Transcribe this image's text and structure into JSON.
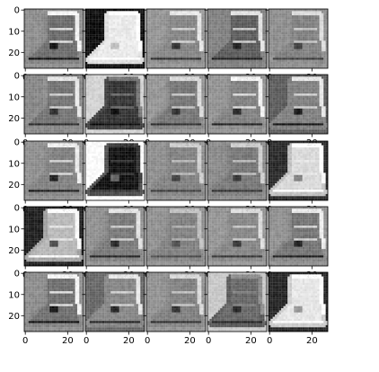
{
  "figure": {
    "rows": 5,
    "cols": 5,
    "background": "#ffffff",
    "colormap": "gray"
  },
  "chart_data": {
    "type": "heatmap",
    "subject": "boot",
    "grid": [
      5,
      5
    ],
    "image_size": [
      28,
      28
    ],
    "xlim": [
      0,
      27
    ],
    "ylim": [
      27,
      0
    ],
    "xticks": [
      0,
      20
    ],
    "yticks": [
      0,
      10,
      20
    ],
    "tick_labels": {
      "x": [
        "0",
        "20"
      ],
      "y": [
        "0",
        "10",
        "20"
      ]
    },
    "panels": [
      {
        "row": 0,
        "col": 0,
        "bg": 0.55,
        "body": 0.42,
        "edge": 0.95,
        "shadow": 0.08,
        "inverted": false
      },
      {
        "row": 0,
        "col": 1,
        "bg": 0.05,
        "body": 0.92,
        "edge": 1.0,
        "shadow": 0.75,
        "inverted": true
      },
      {
        "row": 0,
        "col": 2,
        "bg": 0.58,
        "body": 0.52,
        "edge": 0.9,
        "shadow": 0.2,
        "inverted": false
      },
      {
        "row": 0,
        "col": 3,
        "bg": 0.5,
        "body": 0.36,
        "edge": 0.88,
        "shadow": 0.12,
        "inverted": false
      },
      {
        "row": 0,
        "col": 4,
        "bg": 0.55,
        "body": 0.5,
        "edge": 0.85,
        "shadow": 0.25,
        "inverted": false
      },
      {
        "row": 1,
        "col": 0,
        "bg": 0.52,
        "body": 0.45,
        "edge": 0.9,
        "shadow": 0.18,
        "inverted": false
      },
      {
        "row": 1,
        "col": 1,
        "bg": 0.82,
        "body": 0.2,
        "edge": 0.45,
        "shadow": 0.05,
        "inverted": false
      },
      {
        "row": 1,
        "col": 2,
        "bg": 0.58,
        "body": 0.46,
        "edge": 0.85,
        "shadow": 0.2,
        "inverted": false
      },
      {
        "row": 1,
        "col": 3,
        "bg": 0.57,
        "body": 0.5,
        "edge": 0.95,
        "shadow": 0.15,
        "inverted": false
      },
      {
        "row": 1,
        "col": 4,
        "bg": 0.36,
        "body": 0.5,
        "edge": 0.9,
        "shadow": 0.1,
        "inverted": false
      },
      {
        "row": 2,
        "col": 0,
        "bg": 0.56,
        "body": 0.5,
        "edge": 0.92,
        "shadow": 0.12,
        "inverted": false
      },
      {
        "row": 2,
        "col": 1,
        "bg": 0.98,
        "body": 0.06,
        "edge": 0.2,
        "shadow": 0.4,
        "inverted": true
      },
      {
        "row": 2,
        "col": 2,
        "bg": 0.56,
        "body": 0.5,
        "edge": 0.8,
        "shadow": 0.25,
        "inverted": false
      },
      {
        "row": 2,
        "col": 3,
        "bg": 0.54,
        "body": 0.46,
        "edge": 0.8,
        "shadow": 0.2,
        "inverted": false
      },
      {
        "row": 2,
        "col": 4,
        "bg": 0.16,
        "body": 0.85,
        "edge": 1.0,
        "shadow": 0.5,
        "inverted": true
      },
      {
        "row": 3,
        "col": 0,
        "bg": 0.12,
        "body": 0.72,
        "edge": 0.98,
        "shadow": 0.3,
        "inverted": true
      },
      {
        "row": 3,
        "col": 1,
        "bg": 0.56,
        "body": 0.47,
        "edge": 0.88,
        "shadow": 0.15,
        "inverted": false
      },
      {
        "row": 3,
        "col": 2,
        "bg": 0.56,
        "body": 0.5,
        "edge": 0.75,
        "shadow": 0.3,
        "inverted": false
      },
      {
        "row": 3,
        "col": 3,
        "bg": 0.58,
        "body": 0.52,
        "edge": 0.85,
        "shadow": 0.22,
        "inverted": false
      },
      {
        "row": 3,
        "col": 4,
        "bg": 0.56,
        "body": 0.45,
        "edge": 0.92,
        "shadow": 0.12,
        "inverted": false
      },
      {
        "row": 4,
        "col": 0,
        "bg": 0.55,
        "body": 0.43,
        "edge": 0.95,
        "shadow": 0.08,
        "inverted": false
      },
      {
        "row": 4,
        "col": 1,
        "bg": 0.4,
        "body": 0.52,
        "edge": 0.9,
        "shadow": 0.15,
        "inverted": false
      },
      {
        "row": 4,
        "col": 2,
        "bg": 0.57,
        "body": 0.5,
        "edge": 0.85,
        "shadow": 0.2,
        "inverted": false
      },
      {
        "row": 4,
        "col": 3,
        "bg": 0.78,
        "body": 0.4,
        "edge": 0.55,
        "shadow": 0.15,
        "inverted": false
      },
      {
        "row": 4,
        "col": 4,
        "bg": 0.14,
        "body": 0.9,
        "edge": 1.0,
        "shadow": 0.6,
        "inverted": true
      }
    ]
  }
}
